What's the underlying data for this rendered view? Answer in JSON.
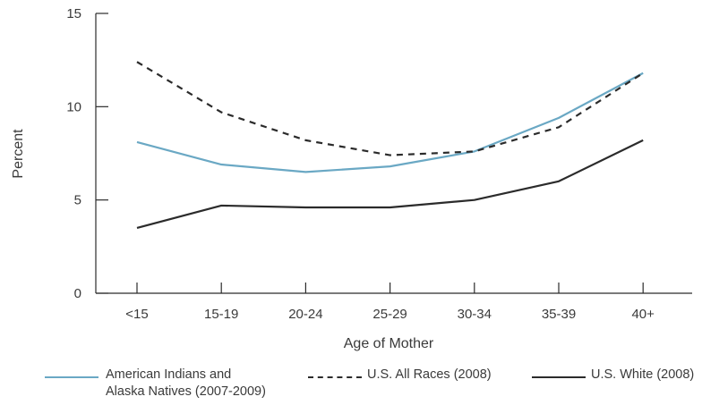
{
  "chart_data": {
    "type": "line",
    "xlabel": "Age of Mother",
    "ylabel": "Percent",
    "categories": [
      "<15",
      "15-19",
      "20-24",
      "25-29",
      "30-34",
      "35-39",
      "40+"
    ],
    "ylim": [
      0,
      15
    ],
    "yticks": [
      0,
      5,
      10,
      15
    ],
    "grid": false,
    "legend_position": "bottom",
    "series": [
      {
        "name": "American Indians and Alaska Natives (2007-2009)",
        "name_lines": [
          "American Indians and",
          "Alaska Natives (2007-2009)"
        ],
        "color": "#6aa8c4",
        "dash": "solid",
        "values": [
          8.1,
          6.9,
          6.5,
          6.8,
          7.6,
          9.4,
          11.8
        ]
      },
      {
        "name": "U.S. All Races (2008)",
        "color": "#2b2b2b",
        "dash": "dashed",
        "values": [
          12.4,
          9.7,
          8.2,
          7.4,
          7.6,
          8.9,
          11.8
        ]
      },
      {
        "name": "U.S. White (2008)",
        "color": "#2b2b2b",
        "dash": "solid",
        "values": [
          3.5,
          4.7,
          4.6,
          4.6,
          5.0,
          6.0,
          8.2
        ]
      }
    ]
  }
}
